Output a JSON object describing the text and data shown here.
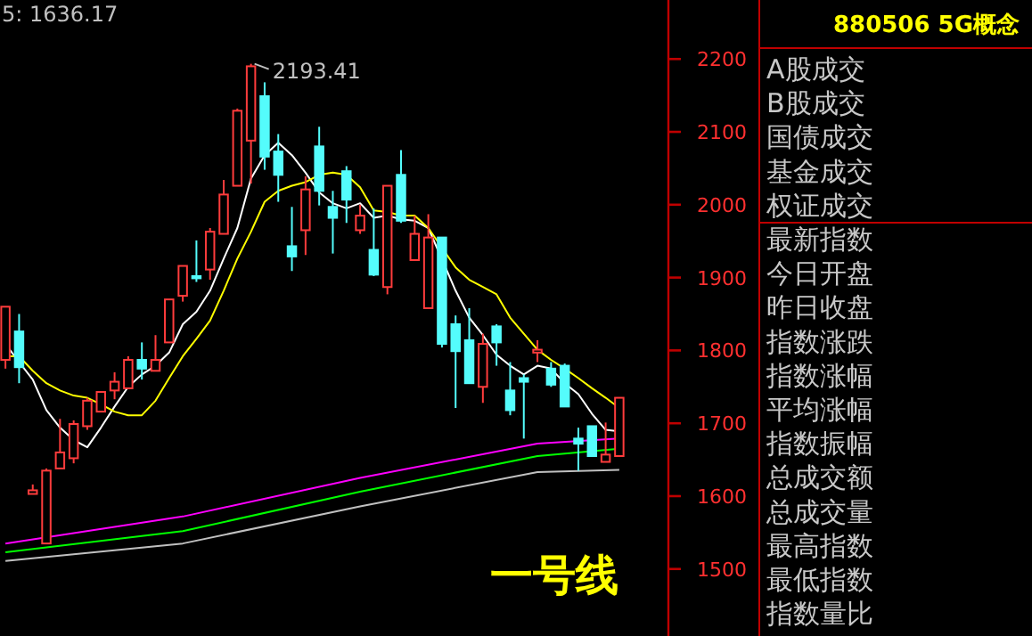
{
  "chart_data": [
    {
      "type": "candlestick",
      "categories": [
        null,
        null,
        null,
        null,
        null,
        null,
        null,
        null,
        null,
        null,
        null,
        null,
        null,
        null,
        null,
        null,
        null,
        null,
        null,
        null,
        null,
        null,
        null,
        null,
        null,
        null,
        null,
        null,
        null,
        null,
        null,
        null,
        null,
        null,
        null,
        null,
        null,
        null,
        null,
        null,
        null,
        null,
        null,
        null,
        null,
        null
      ],
      "ohlc": [
        [
          1787,
          1860,
          1775,
          1860
        ],
        [
          1826,
          1850,
          1755,
          1777
        ],
        [
          1603,
          1616,
          1603,
          1608
        ],
        [
          1535,
          1638,
          1535,
          1635
        ],
        [
          1638,
          1706,
          1638,
          1660
        ],
        [
          1652,
          1704,
          1645,
          1699
        ],
        [
          1696,
          1735,
          1691,
          1731
        ],
        [
          1716,
          1743,
          1716,
          1743
        ],
        [
          1745,
          1770,
          1733,
          1757
        ],
        [
          1748,
          1792,
          1748,
          1787
        ],
        [
          1787,
          1811,
          1760,
          1775
        ],
        [
          1772,
          1821,
          1772,
          1787
        ],
        [
          1811,
          1870,
          1811,
          1870
        ],
        [
          1875,
          1916,
          1867,
          1916
        ],
        [
          1902,
          1951,
          1894,
          1899
        ],
        [
          1911,
          1968,
          1897,
          1963
        ],
        [
          1960,
          2034,
          1960,
          2014
        ],
        [
          2026,
          2132,
          2026,
          2129
        ],
        [
          2088,
          2193.41,
          2029,
          2190
        ],
        [
          2149,
          2168,
          2048,
          2066
        ],
        [
          2073,
          2097,
          2004,
          2041
        ],
        [
          1943,
          1997,
          1909,
          1929
        ],
        [
          1965,
          2039,
          1931,
          2021
        ],
        [
          2080,
          2107,
          1999,
          2019
        ],
        [
          1997,
          2019,
          1933,
          1982
        ],
        [
          2046,
          2053,
          1975,
          2007
        ],
        [
          1965,
          2000,
          1960,
          1985
        ],
        [
          1938,
          1995,
          1902,
          1904
        ],
        [
          1887,
          2026,
          1877,
          2026
        ],
        [
          2041,
          2075,
          1975,
          1978
        ],
        [
          1924,
          1985,
          1924,
          1960
        ],
        [
          1858,
          1987,
          1858,
          1955
        ],
        [
          1955,
          1955,
          1804,
          1809
        ],
        [
          1836,
          1848,
          1721,
          1799
        ],
        [
          1814,
          1858,
          1755,
          1755
        ],
        [
          1750,
          1823,
          1728,
          1809
        ],
        [
          1833,
          1836,
          1779,
          1811
        ],
        [
          1745,
          1784,
          1711,
          1718
        ],
        [
          1762,
          1767,
          1679,
          1757
        ],
        [
          1797,
          1814,
          1784,
          1801
        ],
        [
          1775,
          1784,
          1750,
          1753
        ],
        [
          1779,
          1782,
          1723,
          1723
        ],
        [
          1679,
          1694,
          1635,
          1672
        ],
        [
          1696,
          1696,
          1655,
          1655
        ],
        [
          1647,
          1701,
          1647,
          1657
        ],
        [
          1655,
          1735,
          1655,
          1735
        ]
      ],
      "colors": [
        "#ff3c3c",
        "#54fcfc",
        "#ff3c3c",
        "#ff3c3c",
        "#ff3c3c",
        "#ff3c3c",
        "#ff3c3c",
        "#ff3c3c",
        "#ff3c3c",
        "#ff3c3c",
        "#54fcfc",
        "#ff3c3c",
        "#ff3c3c",
        "#ff3c3c",
        "#54fcfc",
        "#ff3c3c",
        "#ff3c3c",
        "#ff3c3c",
        "#ff3c3c",
        "#54fcfc",
        "#54fcfc",
        "#54fcfc",
        "#ff3c3c",
        "#54fcfc",
        "#54fcfc",
        "#54fcfc",
        "#ff3c3c",
        "#54fcfc",
        "#ff3c3c",
        "#54fcfc",
        "#ff3c3c",
        "#ff3c3c",
        "#54fcfc",
        "#54fcfc",
        "#54fcfc",
        "#ff3c3c",
        "#54fcfc",
        "#54fcfc",
        "#54fcfc",
        "#ff3c3c",
        "#54fcfc",
        "#54fcfc",
        "#54fcfc",
        "#54fcfc",
        "#ff3c3c",
        "#ff3c3c"
      ],
      "series": [
        {
          "type": "line",
          "color": "#ffffff",
          "values": [
            1809,
            1784,
            1760,
            1718,
            1694,
            1677,
            1667,
            1694,
            1723,
            1750,
            1767,
            1779,
            1797,
            1836,
            1853,
            1882,
            1926,
            1968,
            2036,
            2068,
            2085,
            2068,
            2044,
            2017,
            2002,
            1995,
            2002,
            1982,
            1985,
            1980,
            1978,
            1968,
            null,
            1882,
            1845,
            1821,
            1794,
            1779,
            1767,
            1779,
            1775,
            1755,
            1740,
            1713,
            1691,
            1689
          ]
        },
        {
          "type": "line",
          "color": "#ffff00",
          "values": [
            1792,
            1792,
            1772,
            1755,
            1745,
            1738,
            1735,
            1726,
            1716,
            1711,
            1711,
            1731,
            1762,
            1792,
            1816,
            1841,
            1882,
            1926,
            1963,
            2004,
            2019,
            2026,
            2031,
            2041,
            2044,
            2041,
            2024,
            1992,
            1990,
            1985,
            1985,
            1968,
            null,
            1914,
            1897,
            1887,
            1877,
            1845,
            1823,
            1801,
            1787,
            1775,
            1762,
            1748,
            1735,
            1721
          ]
        },
        {
          "type": "line",
          "color": "#ff00ff",
          "values": [
            1535,
            null,
            null,
            null,
            null,
            null,
            null,
            null,
            null,
            null,
            null,
            null,
            null,
            1572,
            null,
            null,
            null,
            null,
            null,
            null,
            null,
            null,
            null,
            null,
            null,
            null,
            1625,
            null,
            null,
            null,
            null,
            null,
            null,
            null,
            null,
            null,
            null,
            null,
            null,
            1672,
            null,
            null,
            null,
            null,
            null,
            1679
          ]
        },
        {
          "type": "line",
          "color": "#00ff00",
          "values": [
            1523,
            null,
            null,
            null,
            null,
            null,
            null,
            null,
            null,
            null,
            null,
            null,
            null,
            1552,
            null,
            null,
            null,
            null,
            null,
            null,
            null,
            null,
            null,
            null,
            null,
            null,
            1606,
            null,
            null,
            null,
            null,
            null,
            null,
            null,
            null,
            null,
            null,
            null,
            null,
            1655,
            null,
            null,
            null,
            null,
            null,
            1665
          ]
        },
        {
          "type": "line",
          "color": "#c0c0c0",
          "values": [
            1511,
            null,
            null,
            null,
            null,
            null,
            null,
            null,
            null,
            null,
            null,
            null,
            null,
            1535,
            null,
            null,
            null,
            null,
            null,
            null,
            null,
            null,
            null,
            null,
            null,
            null,
            1586,
            null,
            null,
            null,
            null,
            null,
            null,
            null,
            null,
            null,
            null,
            null,
            null,
            1633,
            null,
            null,
            null,
            null,
            null,
            1636
          ]
        }
      ],
      "ylim": [
        1408,
        2281
      ],
      "yticks": [
        1500,
        1600,
        1700,
        1800,
        1900,
        2000,
        2100,
        2200
      ],
      "annotations": [
        "5: 1636.17",
        "2193.41",
        "一号线"
      ]
    },
    {
      "type": "other",
      "title": "880506 5G概念",
      "annotations": [
        "A股成交",
        "B股成交",
        "国债成交",
        "基金成交",
        "权证成交",
        "最新指数",
        "今日开盘",
        "昨日收盘",
        "指数涨跌",
        "指数涨幅",
        "平均涨幅",
        "指数振幅",
        "总成交额",
        "总成交量",
        "最高指数",
        "最低指数",
        "指数量比"
      ]
    }
  ]
}
